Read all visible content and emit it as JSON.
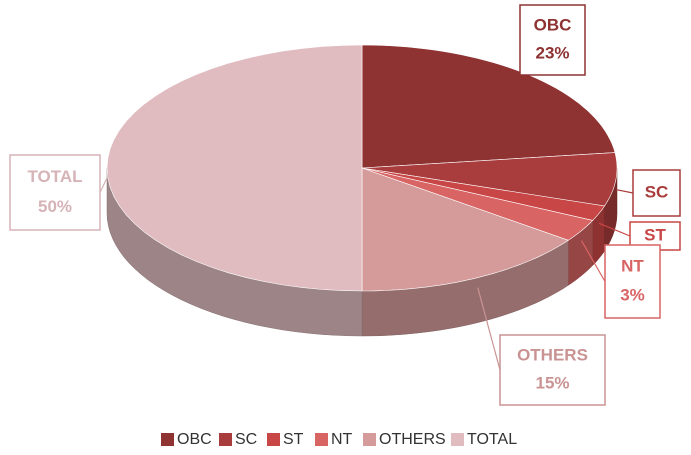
{
  "chart_data": {
    "type": "pie3d",
    "categories": [
      "OBC",
      "SC",
      "ST",
      "NT",
      "OTHERS",
      "TOTAL"
    ],
    "values": [
      23,
      7,
      2,
      3,
      15,
      50
    ],
    "value_labels": [
      "23%",
      null,
      null,
      "3%",
      "15%",
      "50%"
    ],
    "colors": [
      "#8e3232",
      "#a93c3c",
      "#c94646",
      "#d86464",
      "#d59b9b",
      "#e0bcc0"
    ],
    "legend": "bottom"
  }
}
